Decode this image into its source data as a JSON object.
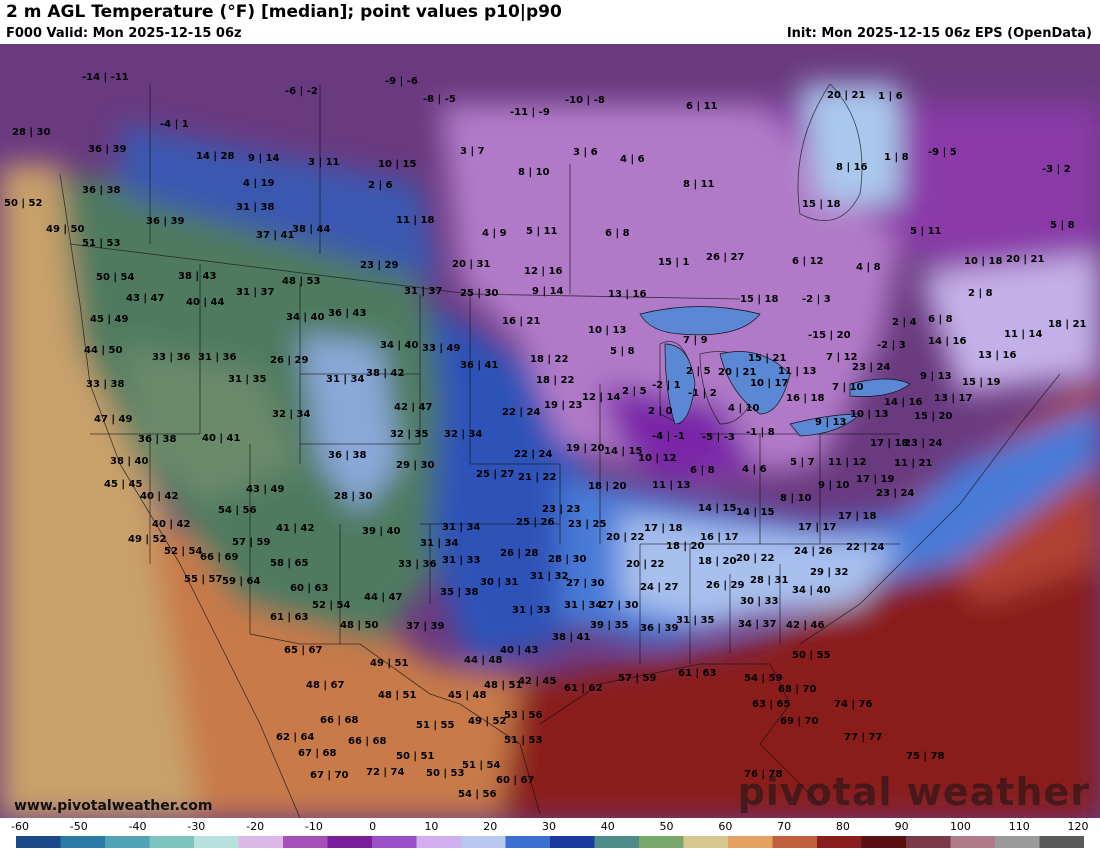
{
  "header": {
    "title": "2 m AGL Temperature (°F) [median]; point values p10|p90",
    "valid": "F000 Valid: Mon 2025-12-15 06z",
    "init": "Init: Mon 2025-12-15 06z EPS (OpenData)"
  },
  "map": {
    "site_label": "www.pivotalweather.com",
    "logo_text": "pivotal weather",
    "point_values": [
      [
        "-14|-11",
        82,
        72
      ],
      [
        "-9|-6",
        385,
        76
      ],
      [
        "-6|-2",
        285,
        86
      ],
      [
        "-8|-5",
        423,
        94
      ],
      [
        "-10|-8",
        565,
        95
      ],
      [
        "-11|-9",
        510,
        107
      ],
      [
        "6|11",
        686,
        101
      ],
      [
        "-4|1",
        160,
        119
      ],
      [
        "28|30",
        12,
        127
      ],
      [
        "36|39",
        88,
        144
      ],
      [
        "14|28",
        196,
        151
      ],
      [
        "9|14",
        248,
        153
      ],
      [
        "3|11",
        308,
        157
      ],
      [
        "10|15",
        378,
        159
      ],
      [
        "3|7",
        460,
        146
      ],
      [
        "3|6",
        573,
        147
      ],
      [
        "4|6",
        620,
        154
      ],
      [
        "8|10",
        518,
        167
      ],
      [
        "20|21",
        827,
        90
      ],
      [
        "1|6",
        878,
        91
      ],
      [
        "8|16",
        836,
        162
      ],
      [
        "1|8",
        884,
        152
      ],
      [
        "-9|5",
        928,
        147
      ],
      [
        "-3|2",
        1042,
        164
      ],
      [
        "8|11",
        683,
        179
      ],
      [
        "4|19",
        243,
        178
      ],
      [
        "2|6",
        368,
        180
      ],
      [
        "36|38",
        82,
        185
      ],
      [
        "50|52",
        4,
        198
      ],
      [
        "31|38",
        236,
        202
      ],
      [
        "15|18",
        802,
        199
      ],
      [
        "5|11",
        910,
        226
      ],
      [
        "5|8",
        1050,
        220
      ],
      [
        "11|18",
        396,
        215
      ],
      [
        "4|9",
        482,
        228
      ],
      [
        "5|11",
        526,
        226
      ],
      [
        "6|8",
        605,
        228
      ],
      [
        "36|39",
        146,
        216
      ],
      [
        "37|41",
        256,
        230
      ],
      [
        "38|44",
        292,
        224
      ],
      [
        "49|50",
        46,
        224
      ],
      [
        "51|53",
        82,
        238
      ],
      [
        "23|29",
        360,
        260
      ],
      [
        "20|31",
        452,
        259
      ],
      [
        "12|16",
        524,
        266
      ],
      [
        "15|1",
        658,
        257
      ],
      [
        "26|27",
        706,
        252
      ],
      [
        "6|12",
        792,
        256
      ],
      [
        "4|8",
        856,
        262
      ],
      [
        "10|18",
        964,
        256
      ],
      [
        "20|21",
        1006,
        254
      ],
      [
        "50|54",
        96,
        272
      ],
      [
        "38|43",
        178,
        271
      ],
      [
        "48|53",
        282,
        276
      ],
      [
        "31|37",
        236,
        287
      ],
      [
        "31|37",
        404,
        286
      ],
      [
        "25|30",
        460,
        288
      ],
      [
        "9|14",
        532,
        286
      ],
      [
        "13|16",
        608,
        289
      ],
      [
        "15|18",
        740,
        294
      ],
      [
        "-2|3",
        802,
        294
      ],
      [
        "2|8",
        968,
        288
      ],
      [
        "43|47",
        126,
        293
      ],
      [
        "40|44",
        186,
        297
      ],
      [
        "34|40",
        286,
        312
      ],
      [
        "36|43",
        328,
        308
      ],
      [
        "16|21",
        502,
        316
      ],
      [
        "2|4",
        892,
        317
      ],
      [
        "6|8",
        928,
        314
      ],
      [
        "11|14",
        1004,
        329
      ],
      [
        "18|21",
        1048,
        319
      ],
      [
        "45|49",
        90,
        314
      ],
      [
        "10|13",
        588,
        325
      ],
      [
        "7|9",
        683,
        335
      ],
      [
        "-15|20",
        808,
        330
      ],
      [
        "14|16",
        928,
        336
      ],
      [
        "34|40",
        380,
        340
      ],
      [
        "33|49",
        422,
        343
      ],
      [
        "44|50",
        84,
        345
      ],
      [
        "33|36",
        152,
        352
      ],
      [
        "31|36",
        198,
        352
      ],
      [
        "26|29",
        270,
        355
      ],
      [
        "5|8",
        610,
        346
      ],
      [
        "15|21",
        748,
        353
      ],
      [
        "7|12",
        826,
        352
      ],
      [
        "13|16",
        978,
        350
      ],
      [
        "36|41",
        460,
        360
      ],
      [
        "18|22",
        530,
        354
      ],
      [
        "2|5",
        686,
        366
      ],
      [
        "20|21",
        718,
        367
      ],
      [
        "11|13",
        778,
        366
      ],
      [
        "23|24",
        852,
        362
      ],
      [
        "-2|3",
        877,
        340
      ],
      [
        "33|38",
        86,
        379
      ],
      [
        "31|35",
        228,
        374
      ],
      [
        "31|34",
        326,
        374
      ],
      [
        "38|42",
        366,
        368
      ],
      [
        "18|22",
        536,
        375
      ],
      [
        "10|17",
        750,
        378
      ],
      [
        "7|10",
        832,
        382
      ],
      [
        "9|13",
        920,
        371
      ],
      [
        "15|19",
        962,
        377
      ],
      [
        "12|14",
        582,
        392
      ],
      [
        "2|5",
        622,
        386
      ],
      [
        "-2|1",
        652,
        380
      ],
      [
        "-1|2",
        688,
        388
      ],
      [
        "16|18",
        786,
        393
      ],
      [
        "14|16",
        884,
        397
      ],
      [
        "13|17",
        934,
        393
      ],
      [
        "32|34",
        272,
        409
      ],
      [
        "42|47",
        394,
        402
      ],
      [
        "19|23",
        544,
        400
      ],
      [
        "22|24",
        502,
        407
      ],
      [
        "2|0",
        648,
        406
      ],
      [
        "4|10",
        728,
        403
      ],
      [
        "10|13",
        850,
        409
      ],
      [
        "9|13",
        815,
        417
      ],
      [
        "15|20",
        914,
        411
      ],
      [
        "47|49",
        94,
        414
      ],
      [
        "36|38",
        138,
        434
      ],
      [
        "40|41",
        202,
        433
      ],
      [
        "32|35",
        390,
        429
      ],
      [
        "32|34",
        444,
        429
      ],
      [
        "-4|-1",
        652,
        431
      ],
      [
        "-5|-3",
        702,
        432
      ],
      [
        "-1|8",
        746,
        427
      ],
      [
        "17|18",
        870,
        438
      ],
      [
        "23|24",
        904,
        438
      ],
      [
        "36|38",
        328,
        450
      ],
      [
        "19|20",
        566,
        443
      ],
      [
        "22|24",
        514,
        449
      ],
      [
        "14|15",
        604,
        446
      ],
      [
        "10|12",
        638,
        453
      ],
      [
        "11|21",
        894,
        458
      ],
      [
        "38|40",
        110,
        456
      ],
      [
        "29|30",
        396,
        460
      ],
      [
        "25|27",
        476,
        469
      ],
      [
        "21|22",
        518,
        472
      ],
      [
        "6|8",
        690,
        465
      ],
      [
        "4|6",
        742,
        464
      ],
      [
        "5|7",
        790,
        457
      ],
      [
        "11|12",
        828,
        457
      ],
      [
        "45|45",
        104,
        479
      ],
      [
        "43|49",
        246,
        484
      ],
      [
        "11|13",
        652,
        480
      ],
      [
        "18|20",
        588,
        481
      ],
      [
        "17|19",
        856,
        474
      ],
      [
        "9|10",
        818,
        480
      ],
      [
        "40|42",
        140,
        491
      ],
      [
        "28|30",
        334,
        491
      ],
      [
        "8|10",
        780,
        493
      ],
      [
        "23|24",
        876,
        488
      ],
      [
        "54|56",
        218,
        505
      ],
      [
        "14|15",
        698,
        503
      ],
      [
        "14|15",
        736,
        507
      ],
      [
        "23|23",
        542,
        504
      ],
      [
        "17|18",
        838,
        511
      ],
      [
        "40|42",
        152,
        519
      ],
      [
        "41|42",
        276,
        523
      ],
      [
        "31|34",
        442,
        522
      ],
      [
        "25|26",
        516,
        517
      ],
      [
        "23|25",
        568,
        519
      ],
      [
        "17|18",
        644,
        523
      ],
      [
        "17|17",
        798,
        522
      ],
      [
        "39|40",
        362,
        526
      ],
      [
        "49|52",
        128,
        534
      ],
      [
        "57|59",
        232,
        537
      ],
      [
        "31|34",
        420,
        538
      ],
      [
        "20|22",
        606,
        532
      ],
      [
        "16|17",
        700,
        532
      ],
      [
        "18|20",
        666,
        541
      ],
      [
        "24|26",
        794,
        546
      ],
      [
        "22|24",
        846,
        542
      ],
      [
        "52|54",
        164,
        546
      ],
      [
        "66|69",
        200,
        552
      ],
      [
        "31|33",
        442,
        555
      ],
      [
        "26|28",
        500,
        548
      ],
      [
        "28|30",
        548,
        554
      ],
      [
        "20|22",
        626,
        559
      ],
      [
        "18|20",
        698,
        556
      ],
      [
        "20|22",
        736,
        553
      ],
      [
        "29|32",
        810,
        567
      ],
      [
        "58|65",
        270,
        558
      ],
      [
        "33|36",
        398,
        559
      ],
      [
        "55|57",
        184,
        574
      ],
      [
        "59|64",
        222,
        576
      ],
      [
        "60|63",
        290,
        583
      ],
      [
        "30|31",
        480,
        577
      ],
      [
        "31|32",
        530,
        571
      ],
      [
        "27|30",
        566,
        578
      ],
      [
        "24|27",
        640,
        582
      ],
      [
        "26|29",
        706,
        580
      ],
      [
        "28|31",
        750,
        575
      ],
      [
        "34|40",
        792,
        585
      ],
      [
        "35|38",
        440,
        587
      ],
      [
        "44|47",
        364,
        592
      ],
      [
        "52|54",
        312,
        600
      ],
      [
        "31|33",
        512,
        605
      ],
      [
        "31|34",
        564,
        600
      ],
      [
        "27|30",
        600,
        600
      ],
      [
        "30|33",
        740,
        596
      ],
      [
        "61|63",
        270,
        612
      ],
      [
        "48|50",
        340,
        620
      ],
      [
        "37|39",
        406,
        621
      ],
      [
        "31|35",
        676,
        615
      ],
      [
        "34|37",
        738,
        619
      ],
      [
        "42|46",
        786,
        620
      ],
      [
        "38|41",
        552,
        632
      ],
      [
        "39|35",
        590,
        620
      ],
      [
        "36|39",
        640,
        623
      ],
      [
        "65|67",
        284,
        645
      ],
      [
        "40|43",
        500,
        645
      ],
      [
        "44|48",
        464,
        655
      ],
      [
        "50|55",
        792,
        650
      ],
      [
        "49|51",
        370,
        658
      ],
      [
        "57|59",
        618,
        673
      ],
      [
        "61|63",
        678,
        668
      ],
      [
        "61|62",
        564,
        683
      ],
      [
        "42|45",
        518,
        676
      ],
      [
        "48|51",
        484,
        680
      ],
      [
        "54|59",
        744,
        673
      ],
      [
        "48|67",
        306,
        680
      ],
      [
        "48|51",
        378,
        690
      ],
      [
        "45|48",
        448,
        690
      ],
      [
        "68|70",
        778,
        684
      ],
      [
        "63|65",
        752,
        699
      ],
      [
        "74|76",
        834,
        699
      ],
      [
        "53|56",
        504,
        710
      ],
      [
        "49|52",
        468,
        716
      ],
      [
        "66|68",
        320,
        715
      ],
      [
        "69|70",
        780,
        716
      ],
      [
        "51|55",
        416,
        720
      ],
      [
        "51|53",
        504,
        735
      ],
      [
        "77|77",
        844,
        732
      ],
      [
        "62|64",
        276,
        732
      ],
      [
        "66|68",
        348,
        736
      ],
      [
        "67|68",
        298,
        748
      ],
      [
        "50|51",
        396,
        751
      ],
      [
        "75|78",
        906,
        751
      ],
      [
        "51|54",
        462,
        760
      ],
      [
        "72|74",
        366,
        767
      ],
      [
        "50|53",
        426,
        768
      ],
      [
        "60|67",
        496,
        775
      ],
      [
        "67|70",
        310,
        770
      ],
      [
        "76|78",
        744,
        769
      ],
      [
        "54|56",
        458,
        789
      ]
    ]
  },
  "colorbar": {
    "ticks": [
      "-60",
      "-50",
      "-40",
      "-30",
      "-20",
      "-10",
      "0",
      "10",
      "20",
      "30",
      "40",
      "50",
      "60",
      "70",
      "80",
      "90",
      "100",
      "110",
      "120"
    ],
    "tick_values": [
      -60,
      -50,
      -40,
      -30,
      -20,
      -10,
      0,
      10,
      20,
      30,
      40,
      50,
      60,
      70,
      80,
      90,
      100,
      110,
      120
    ],
    "colors": [
      "#1a4a8a",
      "#2a7aa6",
      "#4fa3b4",
      "#7cc4c0",
      "#b8e0dc",
      "#dcb8e6",
      "#a450b8",
      "#7a1e9a",
      "#9a4fc8",
      "#d2aef0",
      "#b7c8ee",
      "#3c6fd2",
      "#1a3aa0",
      "#4e8c8a",
      "#7aa86a",
      "#d8c890",
      "#e6a060",
      "#c0603c",
      "#8a1e1e",
      "#5a1010",
      "#7a3a4a",
      "#b07a8a",
      "#9a9a9a",
      "#5a5a5a"
    ]
  }
}
